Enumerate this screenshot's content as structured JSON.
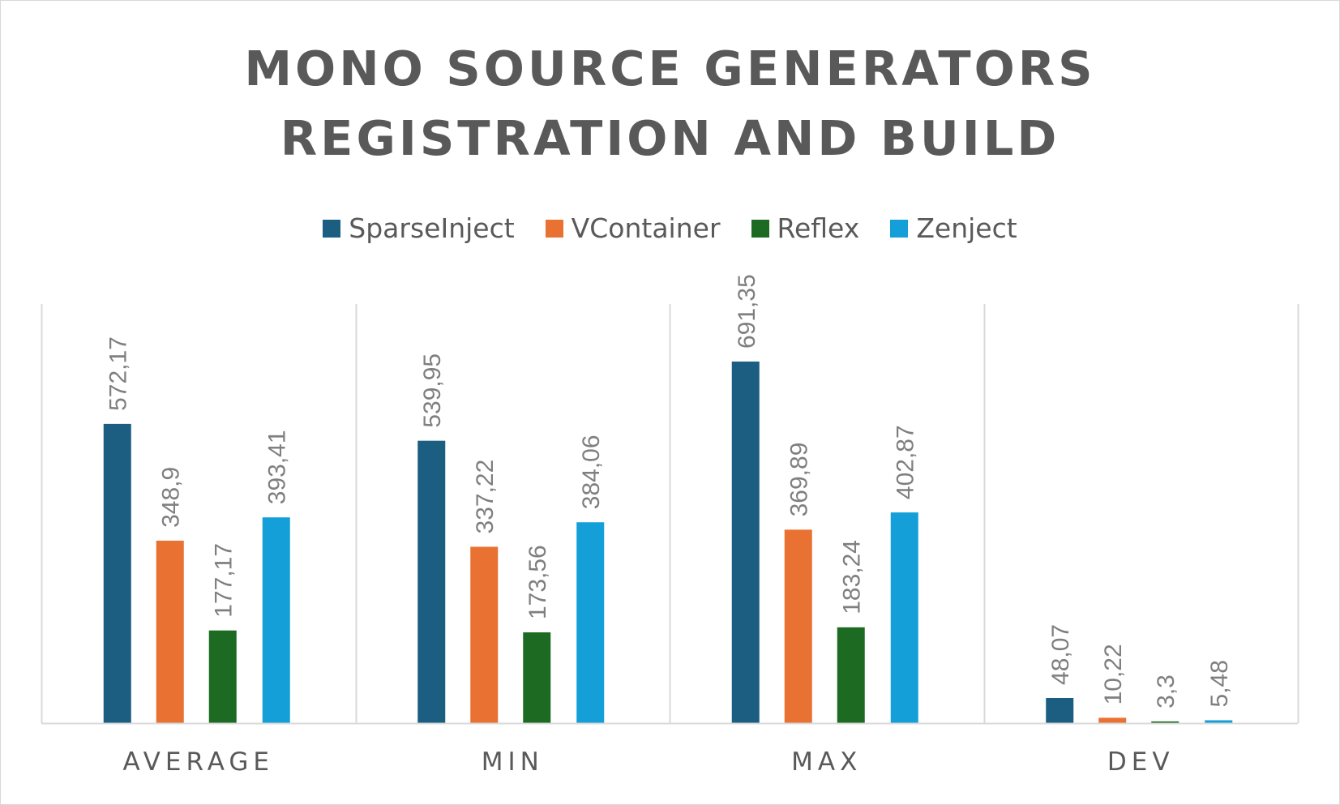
{
  "chart_data": {
    "type": "bar",
    "title": "MONO SOURCE GENERATORS\nREGISTRATION AND BUILD",
    "categories": [
      "AVERAGE",
      "MIN",
      "MAX",
      "DEV"
    ],
    "series": [
      {
        "name": "SparseInject",
        "color": "#1b5e82",
        "values": [
          572.17,
          539.95,
          691.35,
          48.07
        ],
        "labels": [
          "572,17",
          "539,95",
          "691,35",
          "48,07"
        ]
      },
      {
        "name": "VContainer",
        "color": "#e97132",
        "values": [
          348.9,
          337.22,
          369.89,
          10.22
        ],
        "labels": [
          "348,9",
          "337,22",
          "369,89",
          "10,22"
        ]
      },
      {
        "name": "Reflex",
        "color": "#1d6b22",
        "values": [
          177.17,
          173.56,
          183.24,
          3.3
        ],
        "labels": [
          "177,17",
          "173,56",
          "183,24",
          "3,3"
        ]
      },
      {
        "name": "Zenject",
        "color": "#149fd9",
        "values": [
          393.41,
          384.06,
          402.87,
          5.48
        ],
        "labels": [
          "393,41",
          "384,06",
          "402,87",
          "5,48"
        ]
      }
    ],
    "ylim": [
      0,
      700
    ],
    "xlabel": "",
    "ylabel": "",
    "grid": "vertical category separators",
    "legend": "top-center",
    "data_labels": "rotated vertical above bars"
  }
}
